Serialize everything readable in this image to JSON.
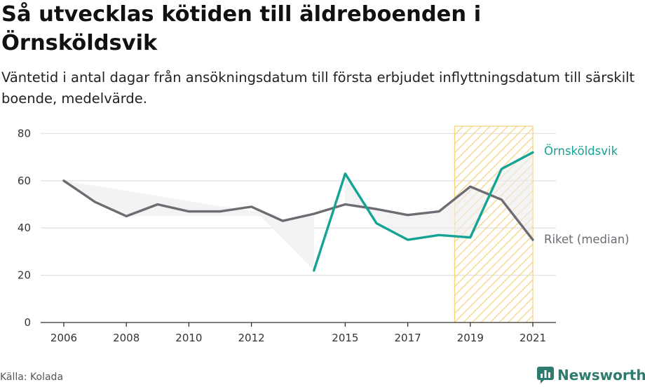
{
  "title": "Så utvecklas kötiden till äldreboenden i Örnsköldsvik",
  "subtitle": "Väntetid i antal dagar från ansökningsdatum till första erbjudet inflyttningsdatum till särskilt boende, medelvärde.",
  "source": "Källa: Kolada",
  "brand": {
    "name": "Newsworthy",
    "icon": "bar-chart-speech-icon",
    "color": "#2f7a6e"
  },
  "chart_data": {
    "type": "line",
    "x": [
      2006,
      2007,
      2008,
      2009,
      2010,
      2011,
      2012,
      2013,
      2014,
      2015,
      2016,
      2017,
      2018,
      2019,
      2020,
      2021
    ],
    "x_ticks": [
      "2006",
      "2008",
      "2010",
      "2012",
      "2015",
      "2017",
      "2019",
      "2021"
    ],
    "y_ticks": [
      "0",
      "20",
      "40",
      "60",
      "80"
    ],
    "ylim": [
      0,
      80
    ],
    "grid": true,
    "highlight_range": [
      2018.5,
      2021
    ],
    "series": [
      {
        "name": "Örnsköldsvik",
        "color": "#14a394",
        "values": [
          null,
          null,
          null,
          null,
          null,
          null,
          null,
          null,
          22,
          63,
          42,
          35,
          37,
          36,
          65,
          72
        ]
      },
      {
        "name": "Riket (median)",
        "color": "#6e6b73",
        "values": [
          60,
          51,
          45,
          50,
          47,
          47,
          49,
          43,
          46,
          50,
          48,
          45.5,
          47,
          57.5,
          52,
          35
        ]
      }
    ]
  }
}
